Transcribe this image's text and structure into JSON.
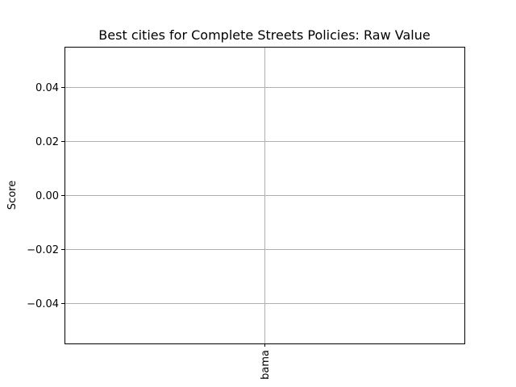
{
  "chart_data": {
    "type": "bar",
    "title": "Best cities for Complete Streets Policies: Raw Value",
    "xlabel": "",
    "ylabel": "Score",
    "categories": [
      "bama"
    ],
    "values": [
      0
    ],
    "ylim": [
      -0.055,
      0.055
    ],
    "y_ticks": [
      -0.04,
      -0.02,
      0.0,
      0.02,
      0.04
    ],
    "y_tick_labels": [
      "−0.04",
      "−0.02",
      "0.00",
      "0.02",
      "0.04"
    ],
    "x_tick_rotation": "vertical",
    "grid": true,
    "legend": "none",
    "colors": {
      "grid": "#b0b0b0",
      "axes": "#000000",
      "bar": "#1f77b4",
      "background": "#ffffff"
    }
  }
}
